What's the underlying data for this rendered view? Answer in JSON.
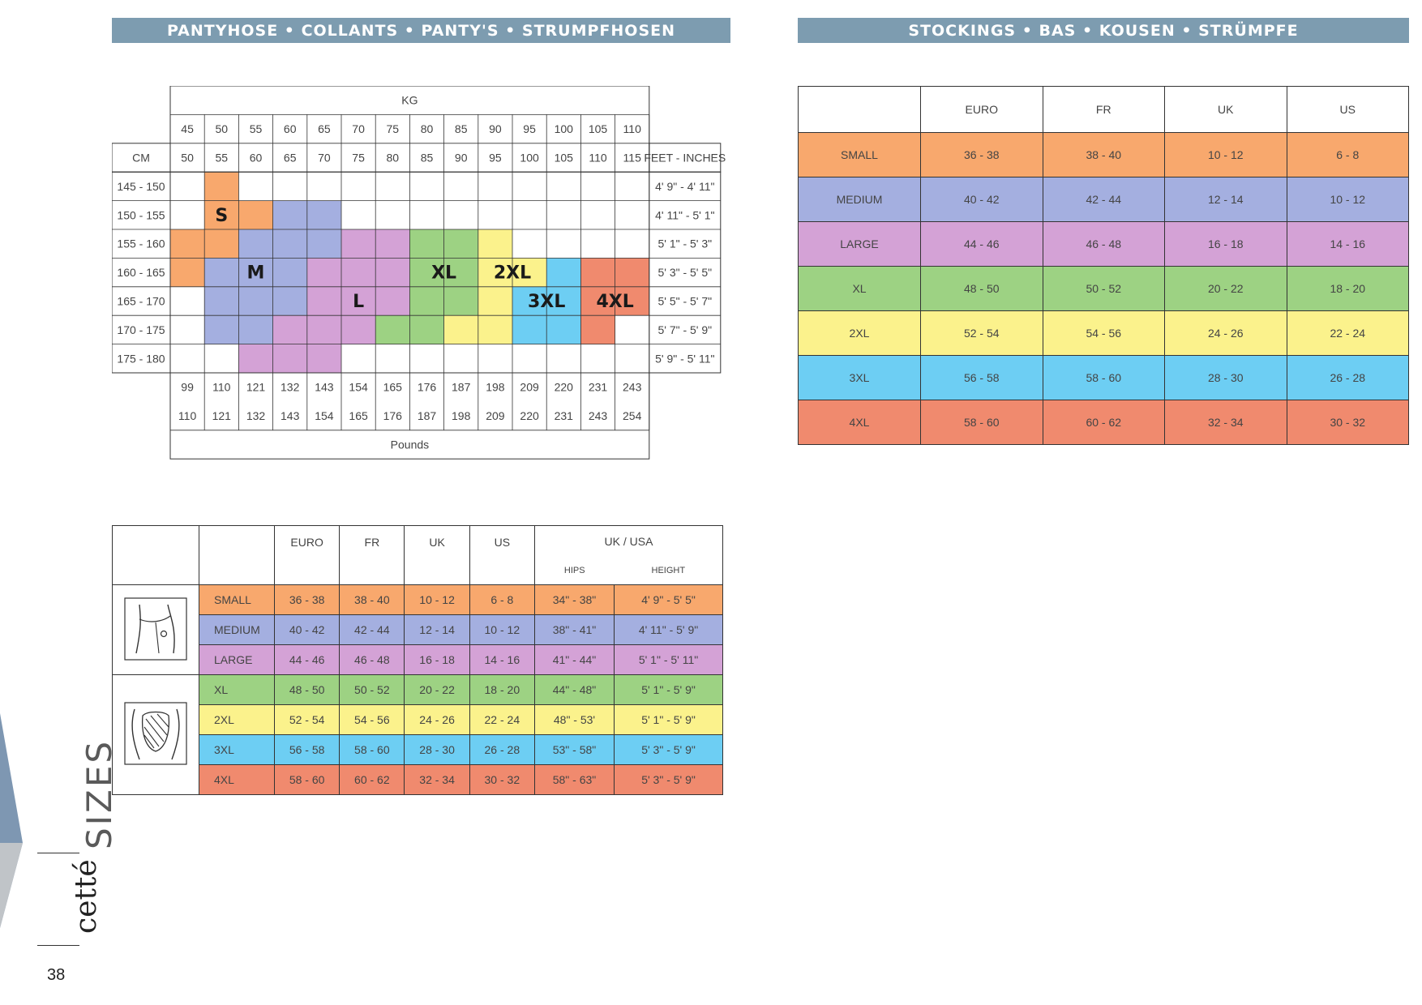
{
  "banners": {
    "left": "PANTYHOSE • COLLANTS • PANTY'S  • STRUMPFHOSEN",
    "right": "STOCKINGS • BAS • KOUSEN • STRÜMPFE"
  },
  "colors": {
    "S": "#f8a86d",
    "M": "#a4afe0",
    "L": "#d4a2d6",
    "XL": "#9dd283",
    "2XL": "#fbf28c",
    "3XL": "#6dcef3",
    "4XL": "#f08a6e"
  },
  "grid_chart": {
    "kg_label": "KG",
    "cm_label": "CM",
    "feet_label": "FEET - INCHES",
    "pounds_label": "Pounds",
    "kg_top": [
      "45",
      "50",
      "55",
      "60",
      "65",
      "70",
      "75",
      "80",
      "85",
      "90",
      "95",
      "100",
      "105",
      "110"
    ],
    "kg_bottom": [
      "50",
      "55",
      "60",
      "65",
      "70",
      "75",
      "80",
      "85",
      "90",
      "95",
      "100",
      "105",
      "110",
      "115"
    ],
    "lbs_top": [
      "99",
      "110",
      "121",
      "132",
      "143",
      "154",
      "165",
      "176",
      "187",
      "198",
      "209",
      "220",
      "231",
      "243"
    ],
    "lbs_bottom": [
      "110",
      "121",
      "132",
      "143",
      "154",
      "165",
      "176",
      "187",
      "198",
      "209",
      "220",
      "231",
      "243",
      "254"
    ],
    "cm_rows": [
      "145 - 150",
      "150 - 155",
      "155 - 160",
      "160 - 165",
      "165 - 170",
      "170 - 175",
      "175 - 180"
    ],
    "ft_rows": [
      "4' 9\" - 4' 11\"",
      "4' 11\" - 5' 1\"",
      "5' 1\" - 5' 3\"",
      "5' 3\" - 5' 5\"",
      "5' 5\" - 5' 7\"",
      "5' 7\" - 5' 9\"",
      "5' 9\" - 5' 11\""
    ],
    "cells": [
      [
        "",
        "S",
        "",
        "",
        "",
        "",
        "",
        "",
        "",
        "",
        "",
        "",
        "",
        ""
      ],
      [
        "",
        "S",
        "S",
        "M",
        "M",
        "",
        "",
        "",
        "",
        "",
        "",
        "",
        "",
        ""
      ],
      [
        "S",
        "S",
        "M",
        "M",
        "M",
        "L",
        "L",
        "XL",
        "XL",
        "2XL",
        "",
        "",
        "",
        ""
      ],
      [
        "S",
        "M",
        "M",
        "M",
        "L",
        "L",
        "L",
        "XL",
        "XL",
        "2XL",
        "2XL",
        "3XL",
        "4XL",
        "4XL"
      ],
      [
        "",
        "M",
        "M",
        "M",
        "L",
        "L",
        "L",
        "XL",
        "XL",
        "2XL",
        "3XL",
        "3XL",
        "4XL",
        "4XL"
      ],
      [
        "",
        "M",
        "M",
        "L",
        "L",
        "L",
        "XL",
        "XL",
        "2XL",
        "2XL",
        "3XL",
        "3XL",
        "4XL",
        ""
      ],
      [
        "",
        "",
        "L",
        "L",
        "L",
        "",
        "",
        "",
        "",
        "",
        "",
        "",
        "",
        ""
      ]
    ],
    "size_labels": [
      {
        "text": "S",
        "col": 1,
        "row": 1
      },
      {
        "text": "M",
        "col": 2,
        "row": 3
      },
      {
        "text": "L",
        "col": 5,
        "row": 4
      },
      {
        "text": "XL",
        "col": 7.5,
        "row": 3
      },
      {
        "text": "2XL",
        "col": 9.5,
        "row": 3
      },
      {
        "text": "3XL",
        "col": 10.5,
        "row": 4
      },
      {
        "text": "4XL",
        "col": 12.5,
        "row": 4
      }
    ]
  },
  "stockings_table": {
    "headers": [
      "",
      "EURO",
      "FR",
      "UK",
      "US"
    ],
    "rows": [
      {
        "size": "SMALL",
        "key": "S",
        "euro": "36 - 38",
        "fr": "38 - 40",
        "uk": "10 - 12",
        "us": "6 - 8"
      },
      {
        "size": "MEDIUM",
        "key": "M",
        "euro": "40 - 42",
        "fr": "42 - 44",
        "uk": "12 - 14",
        "us": "10 - 12"
      },
      {
        "size": "LARGE",
        "key": "L",
        "euro": "44 - 46",
        "fr": "46 - 48",
        "uk": "16 - 18",
        "us": "14 - 16"
      },
      {
        "size": "XL",
        "key": "XL",
        "euro": "48 - 50",
        "fr": "50 - 52",
        "uk": "20 - 22",
        "us": "18 - 20"
      },
      {
        "size": "2XL",
        "key": "2XL",
        "euro": "52 - 54",
        "fr": "54 - 56",
        "uk": "24 - 26",
        "us": "22 - 24"
      },
      {
        "size": "3XL",
        "key": "3XL",
        "euro": "56 - 58",
        "fr": "58 - 60",
        "uk": "28 - 30",
        "us": "26 - 28"
      },
      {
        "size": "4XL",
        "key": "4XL",
        "euro": "58 - 60",
        "fr": "60 - 62",
        "uk": "32 - 34",
        "us": "30 - 32"
      }
    ]
  },
  "pantyhose_table": {
    "headers": [
      "EURO",
      "FR",
      "UK",
      "US",
      "UK / USA"
    ],
    "subheaders": [
      "HIPS",
      "HEIGHT"
    ],
    "rows": [
      {
        "size": "SMALL",
        "key": "S",
        "euro": "36 - 38",
        "fr": "38 - 40",
        "uk": "10 - 12",
        "us": "6 - 8",
        "hips": "34\" - 38\"",
        "height": "4' 9\" - 5' 5\""
      },
      {
        "size": "MEDIUM",
        "key": "M",
        "euro": "40 - 42",
        "fr": "42 - 44",
        "uk": "12 - 14",
        "us": "10 - 12",
        "hips": "38\" - 41\"",
        "height": "4' 11\" - 5' 9\""
      },
      {
        "size": "LARGE",
        "key": "L",
        "euro": "44 - 46",
        "fr": "46 - 48",
        "uk": "16 - 18",
        "us": "14 - 16",
        "hips": "41\" -  44\"",
        "height": "5' 1\" - 5' 11\""
      },
      {
        "size": "XL",
        "key": "XL",
        "euro": "48 - 50",
        "fr": "50 - 52",
        "uk": "20 - 22",
        "us": "18 - 20",
        "hips": "44\" - 48\"",
        "height": "5' 1\" - 5' 9\""
      },
      {
        "size": "2XL",
        "key": "2XL",
        "euro": "52 - 54",
        "fr": "54 - 56",
        "uk": "24 - 26",
        "us": "22 - 24",
        "hips": "48\" - 53'",
        "height": "5' 1\" - 5' 9\""
      },
      {
        "size": "3XL",
        "key": "3XL",
        "euro": "56 - 58",
        "fr": "58 - 60",
        "uk": "28 - 30",
        "us": "26 - 28",
        "hips": "53\" - 58\"",
        "height": "5' 3\" - 5' 9\""
      },
      {
        "size": "4XL",
        "key": "4XL",
        "euro": "58 - 60",
        "fr": "60 - 62",
        "uk": "32 - 34",
        "us": "30 - 32",
        "hips": "58\" - 63\"",
        "height": "5' 3\" - 5' 9\""
      }
    ]
  },
  "side": {
    "section": "SIZES",
    "brand": "cetté",
    "page_number": "38"
  }
}
